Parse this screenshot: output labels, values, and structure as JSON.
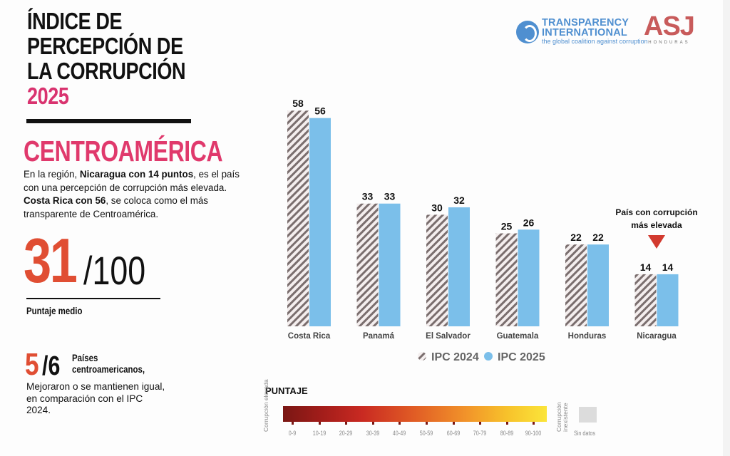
{
  "header": {
    "title_lines": [
      "ÍNDICE DE",
      "PERCEPCIÓN DE",
      "LA CORRUPCIÓN"
    ],
    "year": "2025",
    "region": "CENTROAMÉRICA",
    "description": {
      "p1": "En la región, ",
      "b1": "Nicaragua con 14 puntos",
      "p2": ", es el país con una percepción de corrupción más elevada. ",
      "b2": "Costa Rica con 56",
      "p3": ", se coloca como el más transparente de Centroamérica."
    }
  },
  "average": {
    "value": "31",
    "out_of": "/100",
    "label": "Puntaje medio"
  },
  "improved": {
    "count": "5",
    "total": "/6",
    "label_line1": "Países",
    "label_line2": "centroamericanos,",
    "description": "Mejoraron o se mantienen igual, en comparación con el IPC 2024."
  },
  "logos": {
    "ti_line1": "TRANSPARENCY",
    "ti_line2": "INTERNATIONAL",
    "ti_tagline": "the global coalition against corruption",
    "asj_main": "ASJ",
    "asj_sub": "HONDURAS"
  },
  "chart_data": {
    "type": "bar",
    "title": "",
    "xlabel": "",
    "ylabel": "",
    "ylim": [
      0,
      100
    ],
    "grid": false,
    "legend_position": "bottom-center",
    "categories": [
      "Costa Rica",
      "Panamá",
      "El Salvador",
      "Guatemala",
      "Honduras",
      "Nicaragua"
    ],
    "series": [
      {
        "name": "IPC 2024",
        "values": [
          58,
          33,
          30,
          25,
          22,
          14
        ],
        "color": "#8a7a7a",
        "pattern": "hatched"
      },
      {
        "name": "IPC 2025",
        "values": [
          56,
          33,
          32,
          26,
          22,
          14
        ],
        "color": "#7bbfea"
      }
    ],
    "annotations": [
      {
        "category": "Nicaragua",
        "text_line1": "País con corrupción",
        "text_line2": "más elevada",
        "marker": "down-triangle",
        "color": "#d23a2f"
      }
    ]
  },
  "scale_legend": {
    "title": "PUNTAJE",
    "left_label": "Corrupción elevada",
    "right_label": "Corrupción inexistente",
    "ranges": [
      "0-9",
      "10-19",
      "20-29",
      "30-39",
      "40-49",
      "50-59",
      "60-69",
      "70-79",
      "80-89",
      "90-100"
    ],
    "no_data": "Sin datos"
  }
}
